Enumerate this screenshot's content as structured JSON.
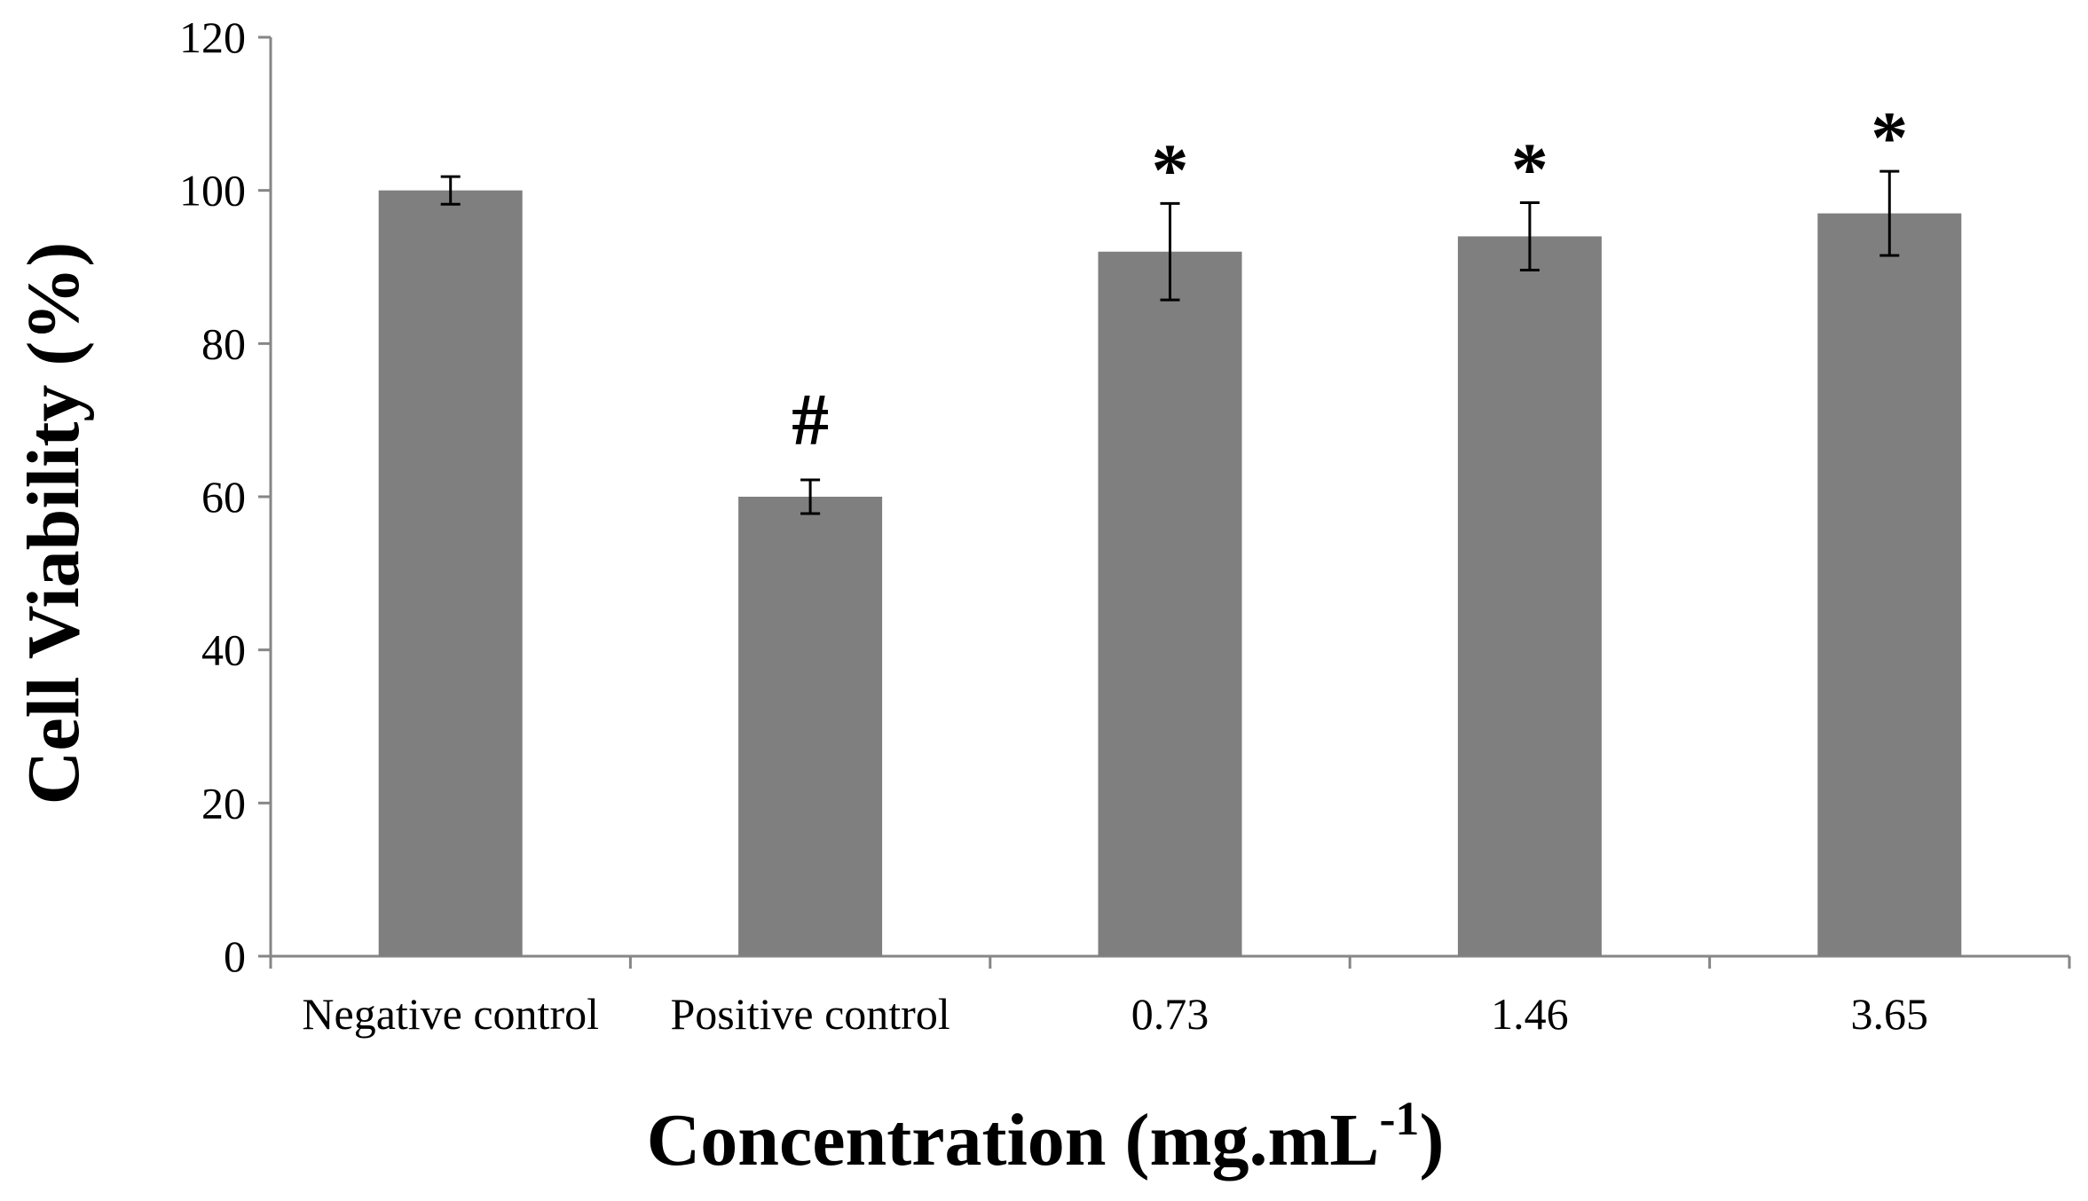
{
  "chart_data": {
    "type": "bar",
    "title": "",
    "xlabel": {
      "main": "Concentration (mg.mL",
      "superscript": "-1",
      "close": ")"
    },
    "ylabel": "Cell Viability (%)",
    "ylim": [
      0,
      120
    ],
    "yticks": [
      0,
      20,
      40,
      60,
      80,
      100,
      120
    ],
    "grid": false,
    "legend": "none",
    "bar_color": "#7f7f7f",
    "categories": [
      "Negative control",
      "Positive control",
      "0.73",
      "1.46",
      "3.65"
    ],
    "values": [
      100,
      60,
      92,
      94,
      97
    ],
    "errors": [
      1.8,
      2.2,
      6.3,
      4.4,
      5.5
    ],
    "annotations": [
      "",
      "#",
      "*",
      "*",
      "*"
    ]
  }
}
